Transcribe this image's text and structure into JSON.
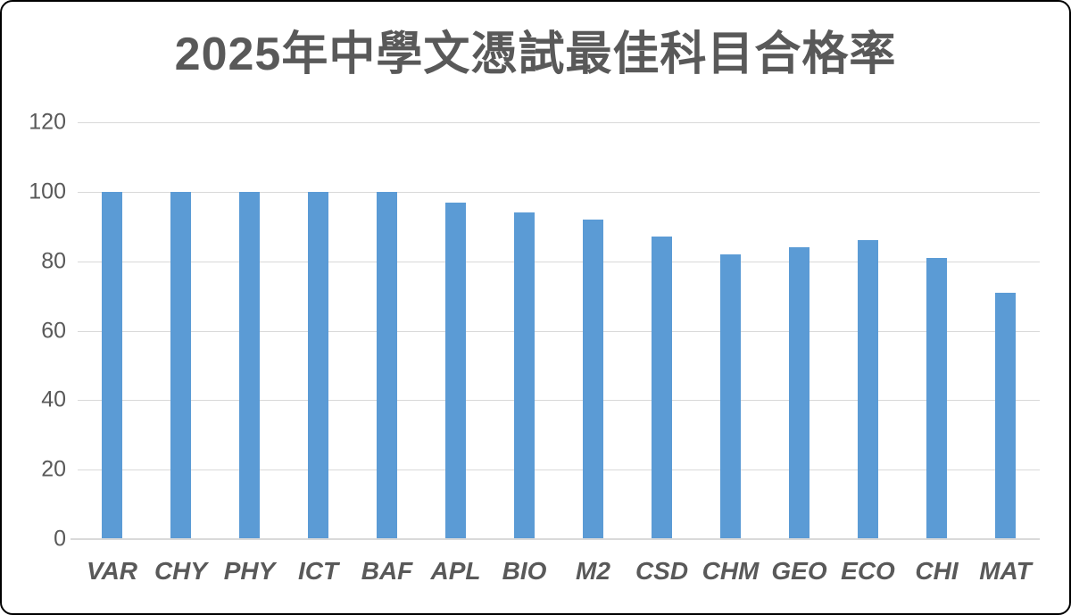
{
  "chart_data": {
    "type": "bar",
    "title": "2025年中學文憑試最佳科目合格率",
    "categories": [
      "VAR",
      "CHY",
      "PHY",
      "ICT",
      "BAF",
      "APL",
      "BIO",
      "M2",
      "CSD",
      "CHM",
      "GEO",
      "ECO",
      "CHI",
      "MAT"
    ],
    "values": [
      100,
      100,
      100,
      100,
      100,
      97,
      94,
      92,
      87,
      82,
      84,
      86,
      81,
      71
    ],
    "xlabel": "",
    "ylabel": "",
    "ylim": [
      0,
      120
    ],
    "yticks": [
      0,
      20,
      40,
      60,
      80,
      100,
      120
    ],
    "grid": true,
    "legend_position": "none",
    "bar_color": "#5b9bd5",
    "grid_color": "#d9d9d9",
    "text_color": "#595959",
    "frame_border_color": "#000000",
    "background_color": "#ffffff"
  }
}
